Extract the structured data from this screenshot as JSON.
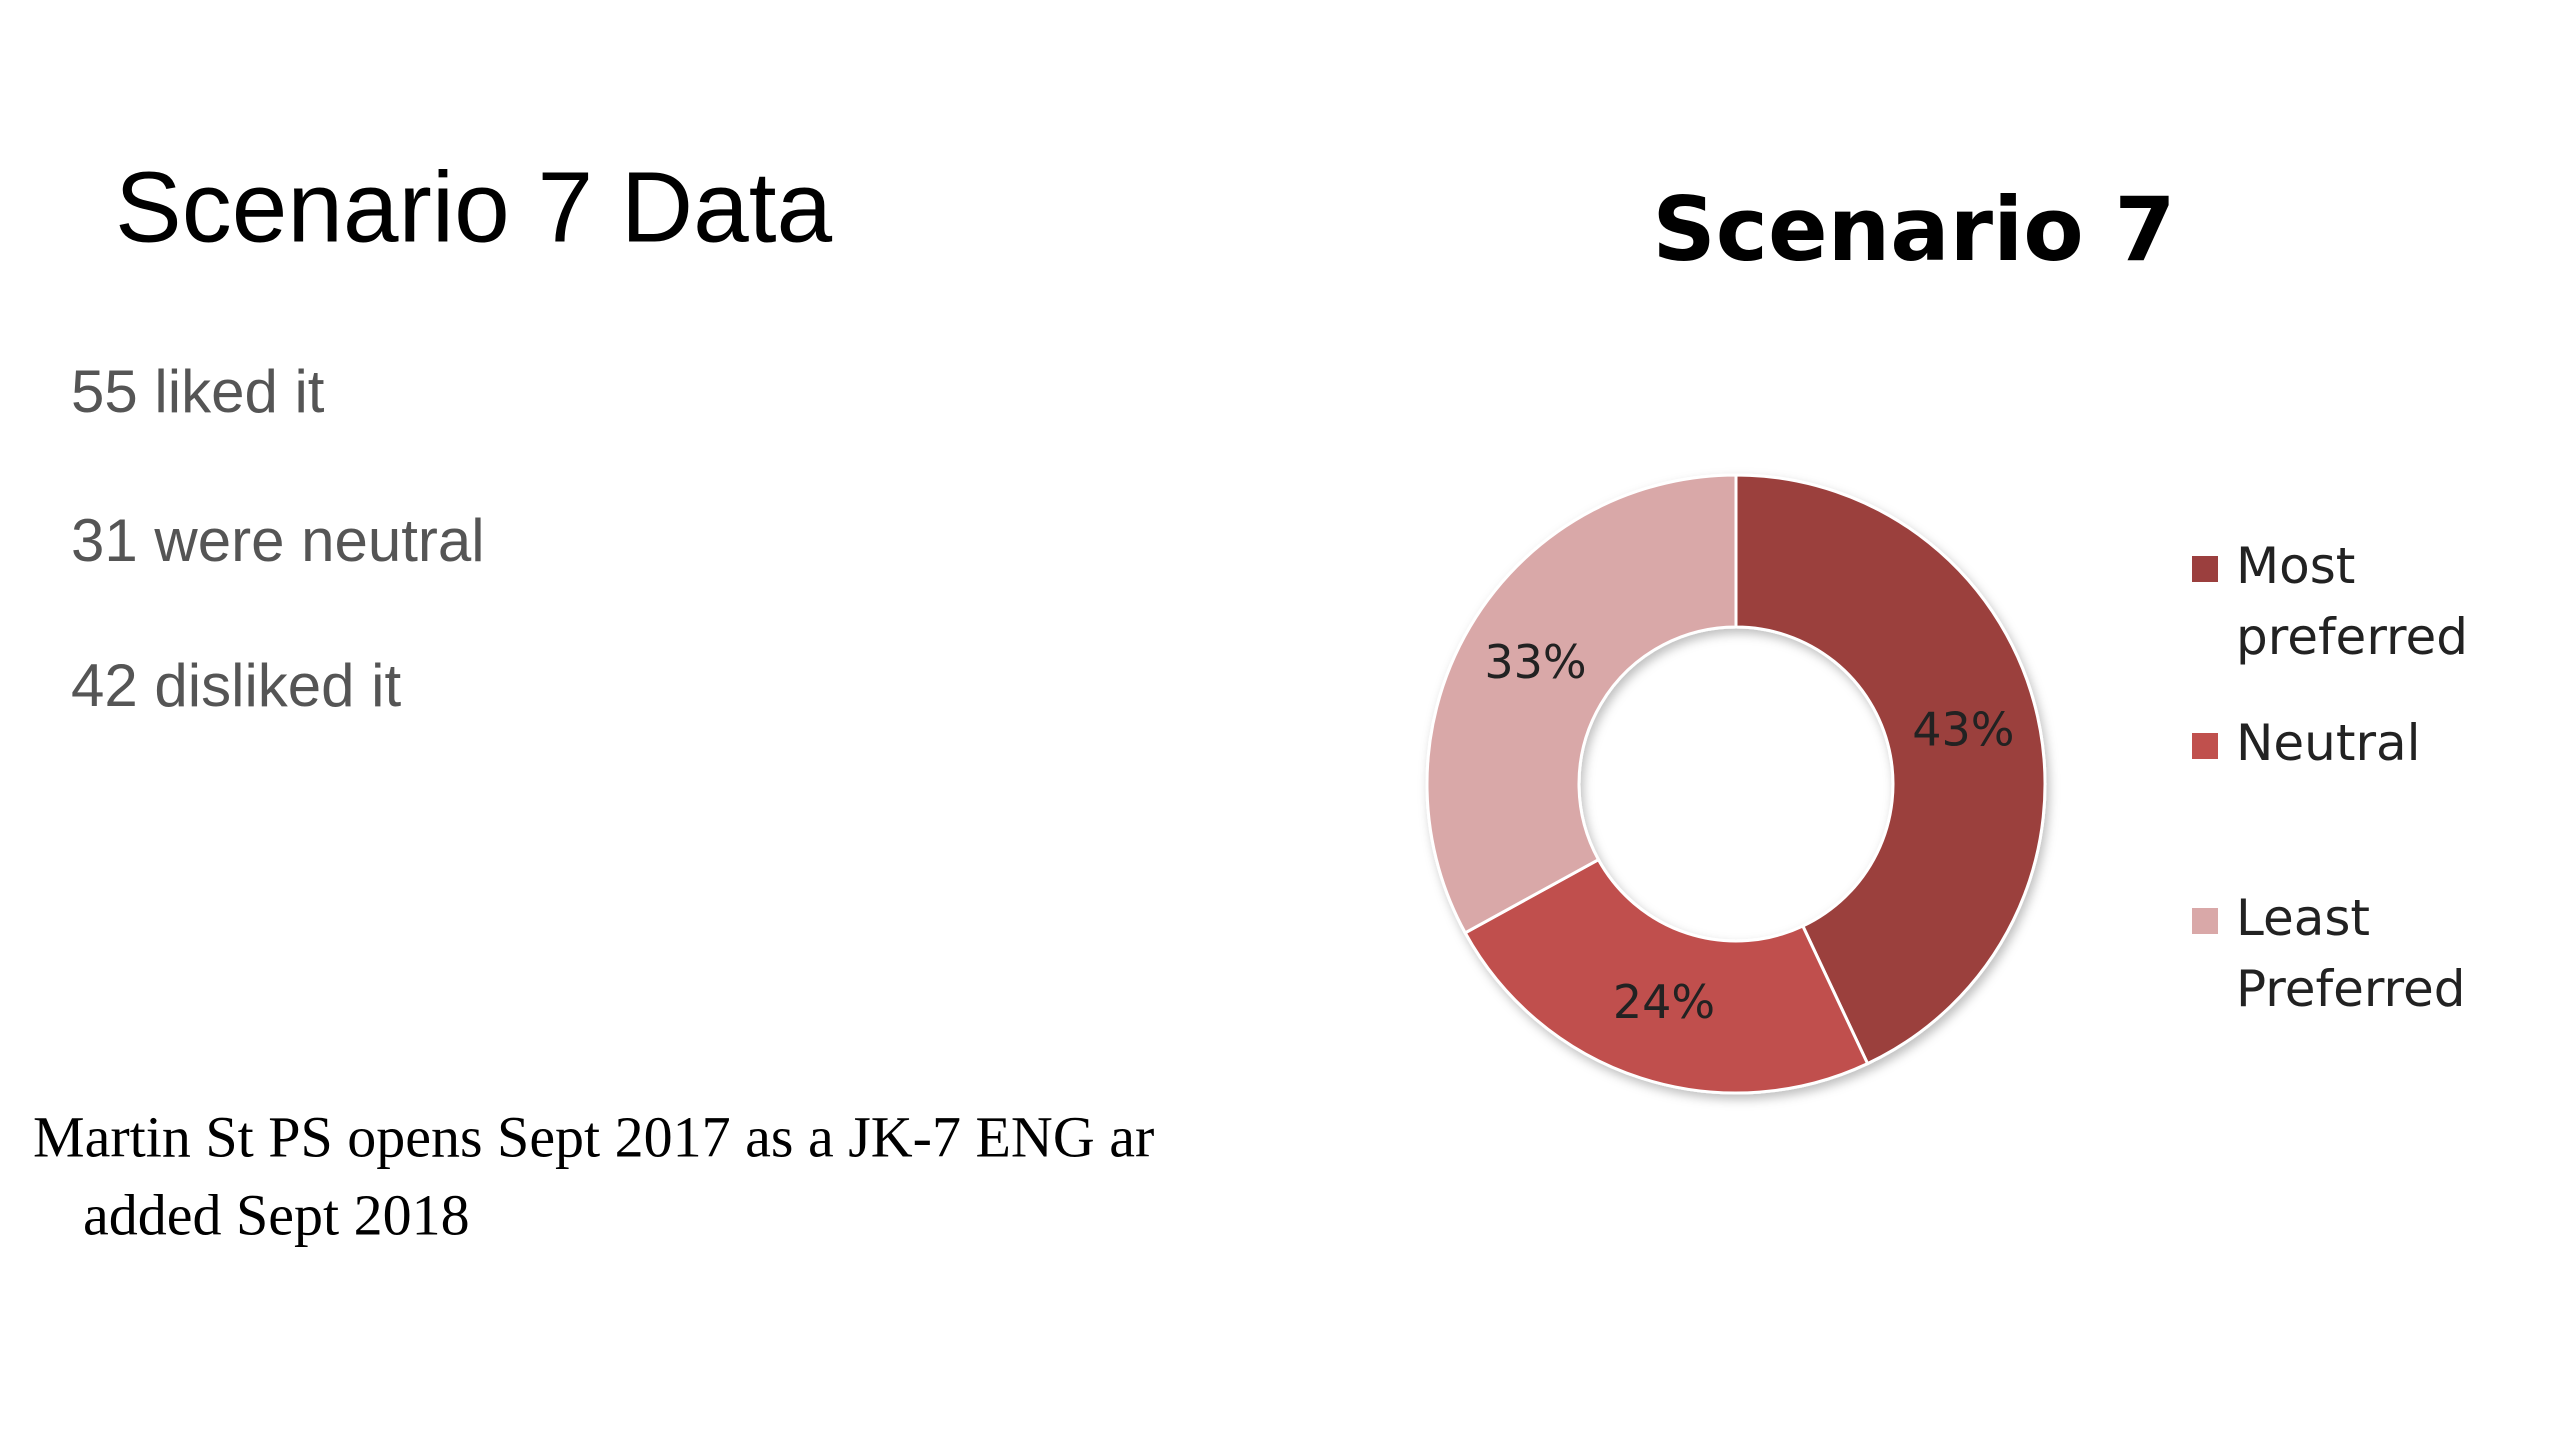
{
  "slide": {
    "title": "Scenario 7 Data",
    "bullets": [
      "55 liked it",
      "31 were neutral",
      "42 disliked it"
    ],
    "footer": [
      "Martin St PS opens Sept 2017 as a JK-7 ENG ar",
      "added Sept 2018"
    ]
  },
  "chart_data": {
    "type": "donut",
    "title": "Scenario 7",
    "categories": [
      "Most preferred",
      "Neutral",
      "Least Preferred"
    ],
    "values": [
      43,
      24,
      33
    ],
    "value_labels": [
      "43%",
      "24%",
      "33%"
    ],
    "colors": [
      "#9b3f3e",
      "#c0504d",
      "#d9a8a8"
    ],
    "legend": "right"
  }
}
